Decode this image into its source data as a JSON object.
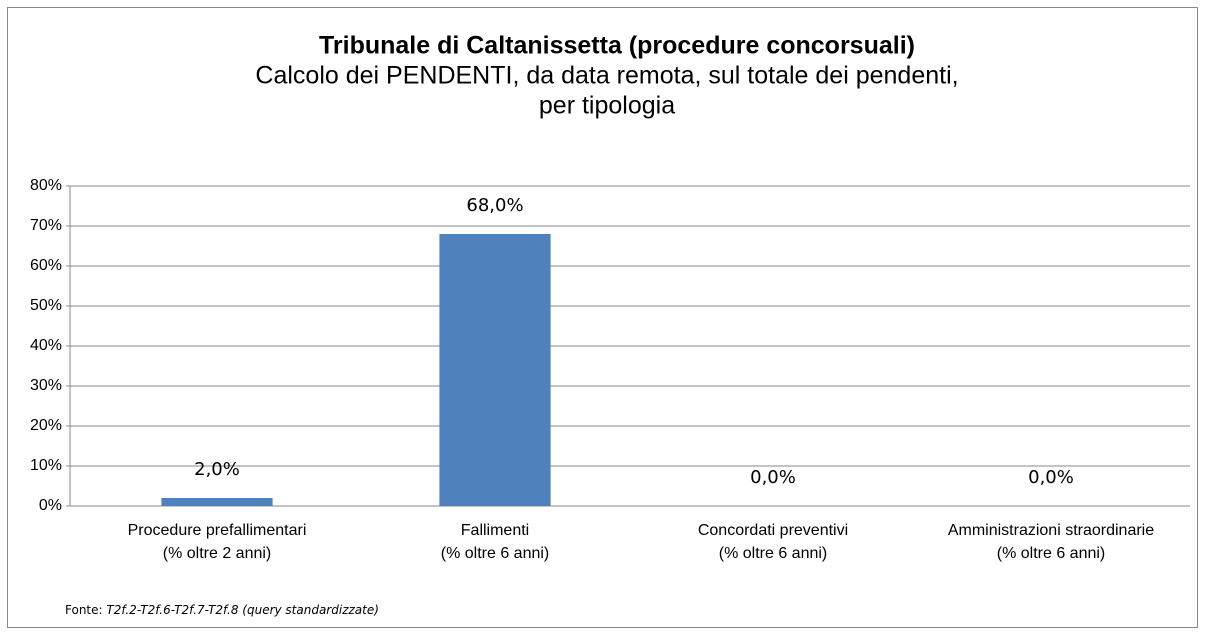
{
  "chart_data": {
    "type": "bar",
    "title": "Tribunale di Caltanissetta (procedure concorsuali)",
    "subtitle": [
      "Calcolo dei PENDENTI, da data remota, sul totale dei pendenti,",
      "per tipologia"
    ],
    "categories": [
      [
        "Procedure prefallimentari",
        "(% oltre 2 anni)"
      ],
      [
        "Fallimenti",
        "(% oltre 6 anni)"
      ],
      [
        "Concordati preventivi",
        "(% oltre 6 anni)"
      ],
      [
        "Amministrazioni straordinarie",
        "(% oltre 6 anni)"
      ]
    ],
    "values": [
      2,
      68,
      0,
      0
    ],
    "value_labels": [
      "2,0%",
      "68,0%",
      "0,0%",
      "0,0%"
    ],
    "color": "#4f81bd",
    "ylim": [
      0,
      80
    ],
    "yticks": [
      {
        "value": 0,
        "label": "0%"
      },
      {
        "value": 10,
        "label": "10%"
      },
      {
        "value": 20,
        "label": "20%"
      },
      {
        "value": 30,
        "label": "30%"
      },
      {
        "value": 40,
        "label": "40%"
      },
      {
        "value": 50,
        "label": "50%"
      },
      {
        "value": 60,
        "label": "60%"
      },
      {
        "value": 70,
        "label": "70%"
      },
      {
        "value": 80,
        "label": "80%"
      }
    ],
    "grid": true,
    "source_label": "Fonte:",
    "source": "T2f.2-T2f.6-T2f.7-T2f.8 (query standardizzate)"
  }
}
